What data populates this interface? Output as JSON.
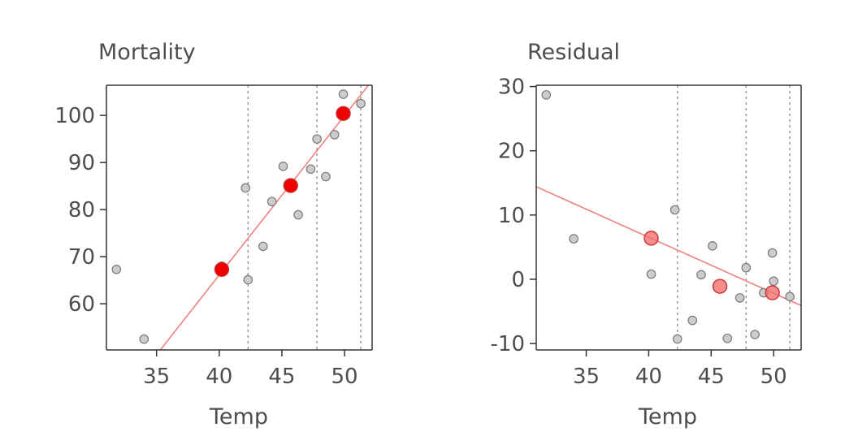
{
  "chart_data": [
    {
      "type": "scatter",
      "title": "Mortality",
      "xlabel": "Temp",
      "ylabel": "",
      "xlim": [
        31,
        52.2
      ],
      "ylim": [
        50.2,
        106.4
      ],
      "xticks": [
        35,
        40,
        45,
        50
      ],
      "yticks": [
        60,
        70,
        80,
        90,
        100
      ],
      "grid": false,
      "points": [
        {
          "x": 31.8,
          "y": 67.3
        },
        {
          "x": 34.0,
          "y": 52.5
        },
        {
          "x": 40.2,
          "y": 68.0
        },
        {
          "x": 42.1,
          "y": 84.6
        },
        {
          "x": 42.3,
          "y": 65.1
        },
        {
          "x": 43.5,
          "y": 72.2
        },
        {
          "x": 44.2,
          "y": 81.7
        },
        {
          "x": 45.1,
          "y": 89.2
        },
        {
          "x": 46.3,
          "y": 78.9
        },
        {
          "x": 47.3,
          "y": 88.6
        },
        {
          "x": 47.8,
          "y": 95.0
        },
        {
          "x": 48.5,
          "y": 87.0
        },
        {
          "x": 49.2,
          "y": 95.9
        },
        {
          "x": 49.9,
          "y": 104.5
        },
        {
          "x": 50.0,
          "y": 100.4
        },
        {
          "x": 51.3,
          "y": 102.5
        }
      ],
      "highlight_points": [
        {
          "x": 40.2,
          "y": 67.3
        },
        {
          "x": 45.7,
          "y": 85.1
        },
        {
          "x": 49.9,
          "y": 100.4
        }
      ],
      "vlines": [
        42.3,
        47.8,
        51.3
      ],
      "fit_line": {
        "x": [
          35.3,
          51.9
        ],
        "y": [
          50.2,
          106.4
        ]
      },
      "colors": {
        "points": "#cccccc",
        "highlight": "#ee0000",
        "fit": "#f08080"
      }
    },
    {
      "type": "scatter",
      "title": "Residual",
      "xlabel": "Temp",
      "ylabel": "",
      "xlim": [
        31,
        52.2
      ],
      "ylim": [
        -11,
        30.2
      ],
      "xticks": [
        35,
        40,
        45,
        50
      ],
      "yticks": [
        -10,
        0,
        10,
        20,
        30
      ],
      "ytick_labels": [
        "-10",
        "0",
        "10",
        "20",
        "30"
      ],
      "grid": false,
      "points": [
        {
          "x": 31.8,
          "y": 28.7
        },
        {
          "x": 34.0,
          "y": 6.3
        },
        {
          "x": 40.2,
          "y": 0.8
        },
        {
          "x": 42.1,
          "y": 10.8
        },
        {
          "x": 42.3,
          "y": -9.3
        },
        {
          "x": 43.5,
          "y": -6.4
        },
        {
          "x": 44.2,
          "y": 0.7
        },
        {
          "x": 45.1,
          "y": 5.2
        },
        {
          "x": 46.3,
          "y": -9.2
        },
        {
          "x": 47.3,
          "y": -2.9
        },
        {
          "x": 47.8,
          "y": 1.8
        },
        {
          "x": 48.5,
          "y": -8.6
        },
        {
          "x": 49.2,
          "y": -2.1
        },
        {
          "x": 49.9,
          "y": 4.1
        },
        {
          "x": 50.0,
          "y": -0.3
        },
        {
          "x": 51.3,
          "y": -2.7
        }
      ],
      "highlight_points": [
        {
          "x": 40.2,
          "y": 6.4
        },
        {
          "x": 45.7,
          "y": -1.1
        },
        {
          "x": 49.9,
          "y": -2.1
        }
      ],
      "vlines": [
        42.3,
        47.8,
        51.3
      ],
      "fit_line": {
        "x": [
          31,
          52.2
        ],
        "y": [
          14.4,
          -4.1
        ]
      },
      "colors": {
        "points": "#cccccc",
        "highlight": "#f47070",
        "fit": "#f08080"
      }
    }
  ]
}
